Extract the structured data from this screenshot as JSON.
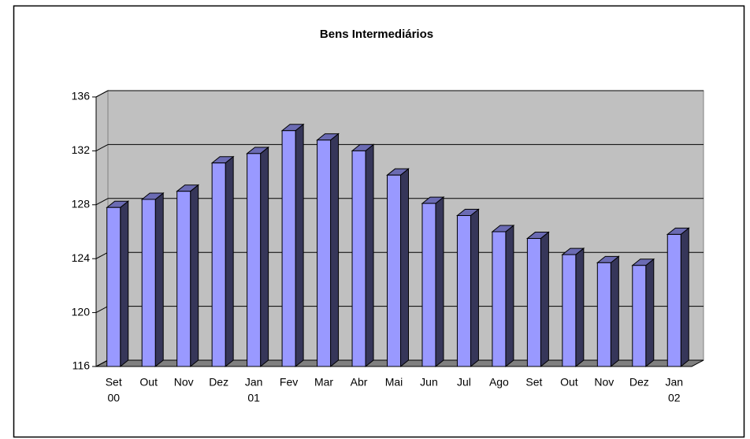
{
  "chart_data": {
    "type": "bar3d",
    "title": "Bens Intermediários",
    "categories": [
      [
        "Set",
        "00"
      ],
      [
        "Out"
      ],
      [
        "Nov"
      ],
      [
        "Dez"
      ],
      [
        "Jan",
        "01"
      ],
      [
        "Fev"
      ],
      [
        "Mar"
      ],
      [
        "Abr"
      ],
      [
        "Mai"
      ],
      [
        "Jun"
      ],
      [
        "Jul"
      ],
      [
        "Ago"
      ],
      [
        "Set"
      ],
      [
        "Out"
      ],
      [
        "Nov"
      ],
      [
        "Dez"
      ],
      [
        "Jan",
        "02"
      ]
    ],
    "values": [
      127.8,
      128.4,
      129.0,
      131.1,
      131.8,
      133.5,
      132.8,
      132.0,
      130.2,
      128.1,
      127.2,
      126.0,
      125.5,
      124.3,
      123.7,
      123.5,
      125.8
    ],
    "color": "#9999ff",
    "ylim": [
      116,
      136
    ],
    "yticks": [
      116,
      120,
      124,
      128,
      132,
      136
    ],
    "grid": true
  }
}
